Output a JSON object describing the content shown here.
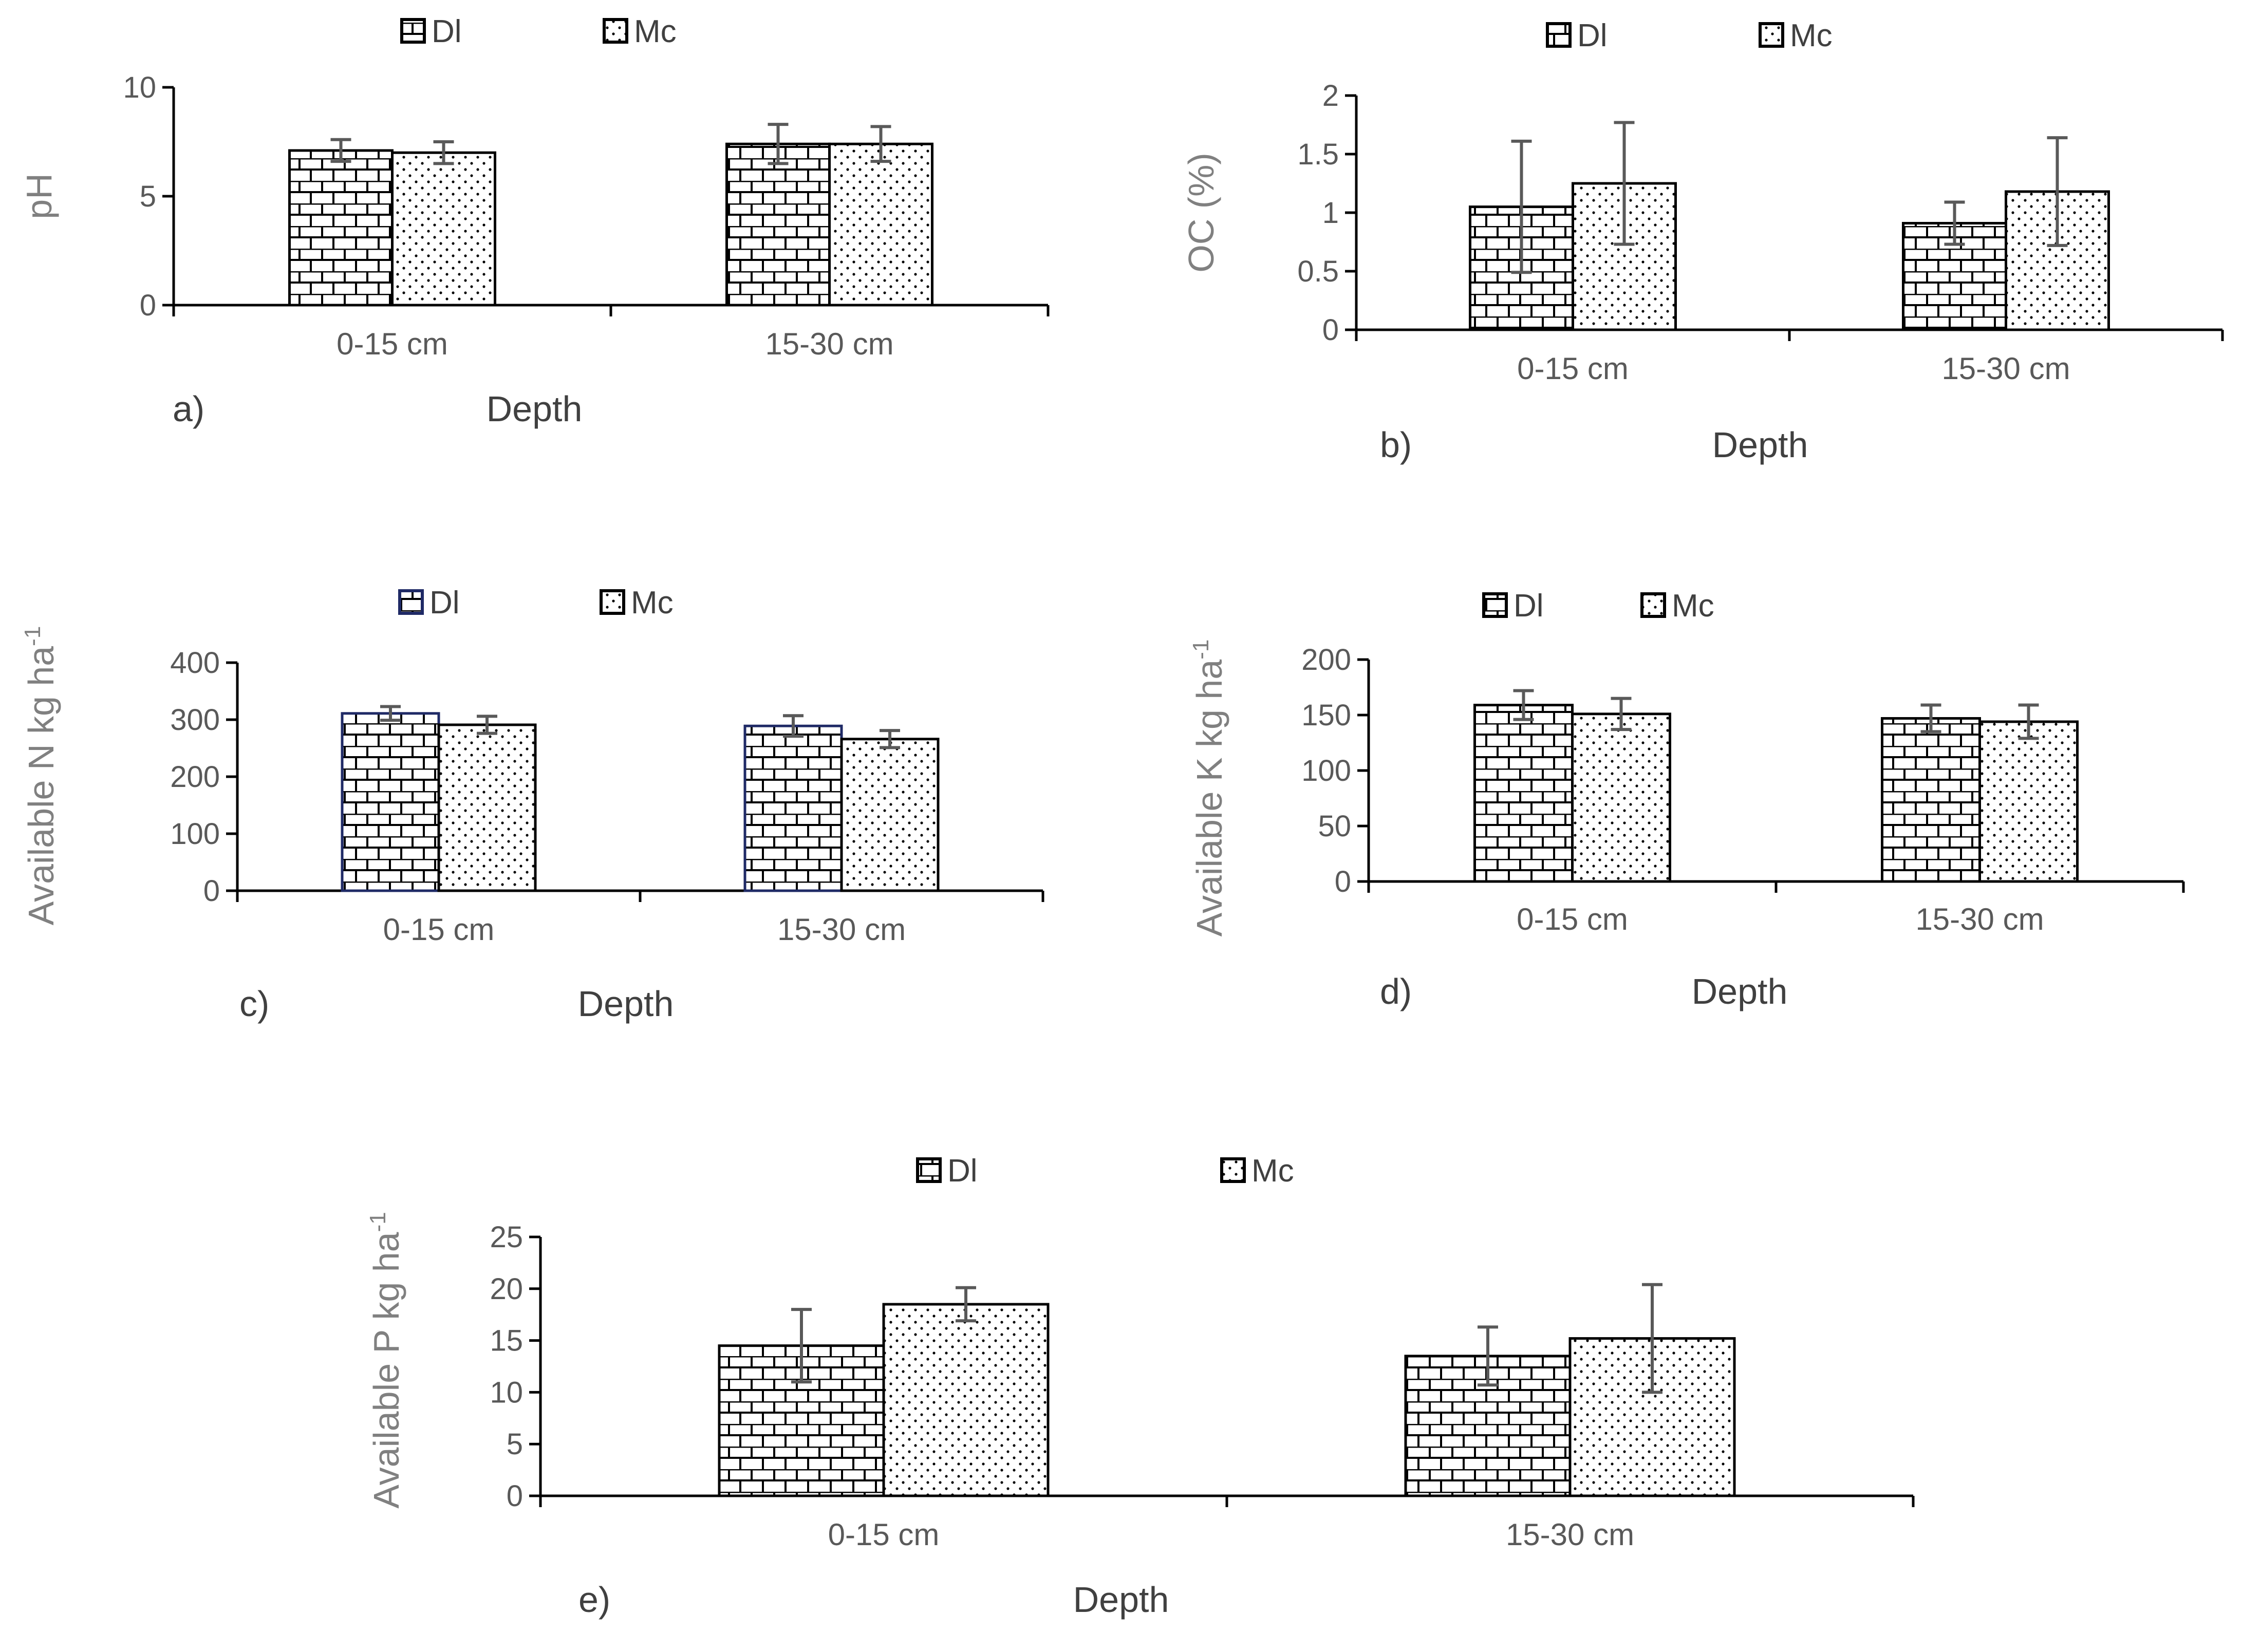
{
  "chart_data": [
    {
      "id": "a",
      "type": "bar",
      "panel_label": "a)",
      "title": "",
      "xlabel": "Depth",
      "ylabel": "pH",
      "categories": [
        "0-15 cm",
        "15-30 cm"
      ],
      "series": [
        {
          "name": "Dl",
          "values": [
            7.1,
            7.4
          ],
          "errors": [
            0.5,
            0.9
          ]
        },
        {
          "name": "Mc",
          "values": [
            7.0,
            7.4
          ],
          "errors": [
            0.5,
            0.8
          ]
        }
      ],
      "ylim": [
        0,
        10
      ],
      "yticks": [
        0,
        5,
        10
      ],
      "legend": "top",
      "grid": false
    },
    {
      "id": "b",
      "type": "bar",
      "panel_label": "b)",
      "title": "",
      "xlabel": "Depth",
      "ylabel": "OC (%)",
      "categories": [
        "0-15 cm",
        "15-30 cm"
      ],
      "series": [
        {
          "name": "Dl",
          "values": [
            1.05,
            0.91
          ],
          "errors": [
            0.56,
            0.18
          ]
        },
        {
          "name": "Mc",
          "values": [
            1.25,
            1.18
          ],
          "errors": [
            0.52,
            0.46
          ]
        }
      ],
      "ylim": [
        0,
        2
      ],
      "yticks": [
        0,
        0.5,
        1,
        1.5,
        2
      ],
      "legend": "top",
      "grid": false
    },
    {
      "id": "c",
      "type": "bar",
      "panel_label": "c)",
      "title": "",
      "xlabel": "Depth",
      "ylabel": "Available N kg ha",
      "ylabel_sup": "-1",
      "categories": [
        "0-15 cm",
        "15-30 cm"
      ],
      "series": [
        {
          "name": "Dl",
          "values": [
            311,
            289
          ],
          "errors": [
            12,
            18
          ]
        },
        {
          "name": "Mc",
          "values": [
            291,
            266
          ],
          "errors": [
            15,
            15
          ]
        }
      ],
      "ylim": [
        0,
        400
      ],
      "yticks": [
        0,
        100,
        200,
        300,
        400
      ],
      "legend": "top",
      "grid": false
    },
    {
      "id": "d",
      "type": "bar",
      "panel_label": "d)",
      "title": "",
      "xlabel": "Depth",
      "ylabel": "Available K kg ha",
      "ylabel_sup": "-1",
      "categories": [
        "0-15 cm",
        "15-30 cm"
      ],
      "series": [
        {
          "name": "Dl",
          "values": [
            159,
            147
          ],
          "errors": [
            13,
            12
          ]
        },
        {
          "name": "Mc",
          "values": [
            151,
            144
          ],
          "errors": [
            14,
            15
          ]
        }
      ],
      "ylim": [
        0,
        200
      ],
      "yticks": [
        0,
        50,
        100,
        150,
        200
      ],
      "legend": "top",
      "grid": false
    },
    {
      "id": "e",
      "type": "bar",
      "panel_label": "e)",
      "title": "",
      "xlabel": "Depth",
      "ylabel": "Available P kg ha",
      "ylabel_sup": "-1",
      "categories": [
        "0-15 cm",
        "15-30 cm"
      ],
      "series": [
        {
          "name": "Dl",
          "values": [
            14.5,
            13.5
          ],
          "errors": [
            3.5,
            2.8
          ]
        },
        {
          "name": "Mc",
          "values": [
            18.5,
            15.2
          ],
          "errors": [
            1.6,
            5.2
          ]
        }
      ],
      "ylim": [
        0,
        25
      ],
      "yticks": [
        0,
        5,
        10,
        15,
        20,
        25
      ],
      "legend": "top",
      "grid": false
    }
  ],
  "colors": {
    "axis": "#000000",
    "tick_label": "#595959",
    "axis_title": "#808080",
    "error_bar": "#595959",
    "bar_outline": "#000000",
    "bar_outline_alt": "#1f2a66",
    "background": "#ffffff"
  }
}
